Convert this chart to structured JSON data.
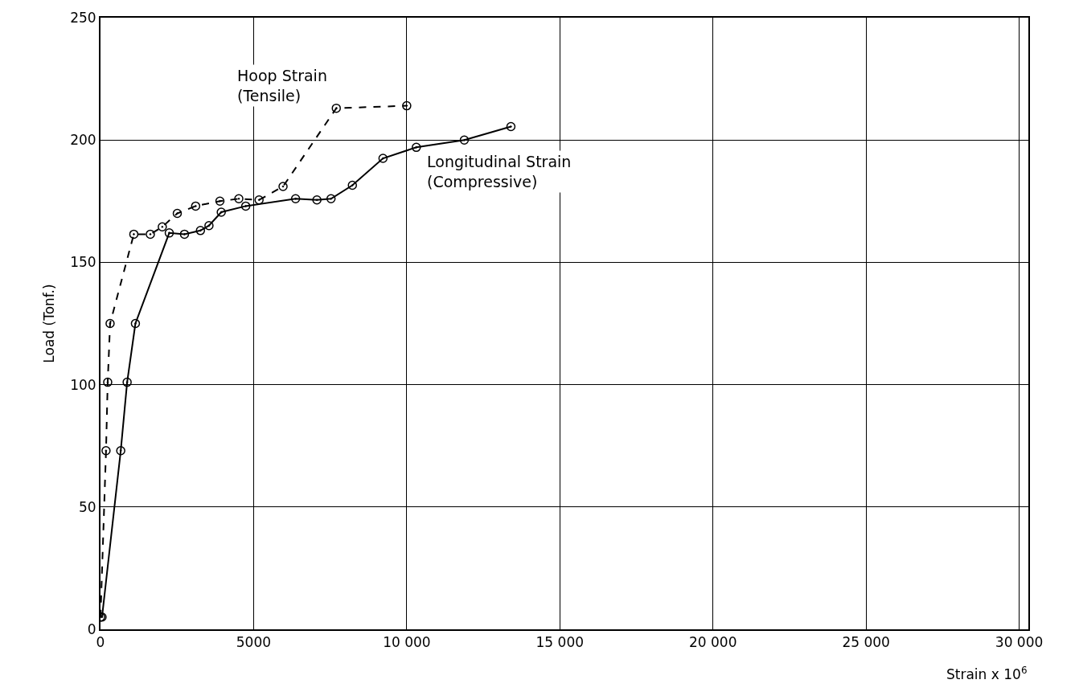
{
  "chart_data": {
    "type": "line",
    "xlabel": "Strain x 10$^{6}$",
    "ylabel": "Load (Tonf.)",
    "xlim": [
      0,
      30300
    ],
    "ylim": [
      0,
      250
    ],
    "xticks": [
      0,
      5000,
      {
        "value": 10000,
        "label": "10 000"
      },
      {
        "value": 15000,
        "label": "15 000"
      },
      {
        "value": 20000,
        "label": "20 000"
      },
      {
        "value": 25000,
        "label": "25 000"
      },
      {
        "value": 30000,
        "label": "30 000"
      }
    ],
    "yticks": [
      0,
      50,
      100,
      150,
      200,
      250
    ],
    "grid": true,
    "legend": false,
    "marker": "circle",
    "series": [
      {
        "name": "Hoop Strain\n(Tensile)",
        "color": "#000000",
        "line_style": "dashed",
        "x": [
          0,
          180,
          235,
          313,
          1088,
          1627,
          2018,
          2507,
          3107,
          3899,
          4517,
          5178,
          5961,
          7700,
          10000
        ],
        "values": [
          5,
          73,
          101,
          125,
          161.5,
          161.5,
          164.5,
          170,
          173,
          175,
          176,
          175.5,
          181,
          213,
          214
        ]
      },
      {
        "name": "Longitudinal Strain\n(Compressive)",
        "color": "#000000",
        "line_style": "solid",
        "x": [
          50,
          661,
          870,
          1140,
          2245,
          2742,
          3264,
          3542,
          3943,
          4743,
          6371,
          7067,
          7528,
          8225,
          9225,
          10313,
          11880,
          13402
        ],
        "values": [
          5,
          73,
          101,
          125,
          162,
          161.5,
          163,
          165,
          170.5,
          173,
          176,
          175.5,
          176,
          181.5,
          192.5,
          197,
          200,
          205.5
        ]
      }
    ]
  }
}
